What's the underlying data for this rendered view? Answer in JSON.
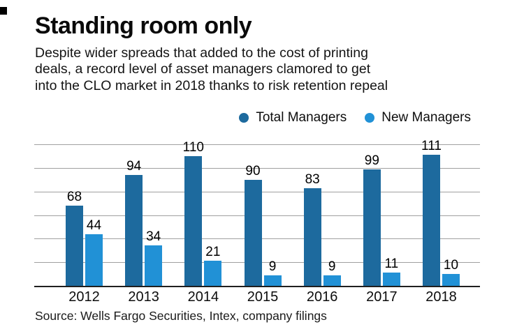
{
  "header": {
    "title": "Standing room only",
    "subtitle_lines": [
      "Despite wider spreads that added to the cost of printing",
      "deals, a record level of asset managers clamored to get",
      "into the CLO market in 2018 thanks to risk retention repeal"
    ]
  },
  "legend": [
    {
      "label": "Total Managers",
      "color": "#1d6a9e"
    },
    {
      "label": "New Managers",
      "color": "#2191d6"
    }
  ],
  "chart_data": {
    "type": "bar",
    "title": "Standing room only",
    "categories": [
      "2012",
      "2013",
      "2014",
      "2015",
      "2016",
      "2017",
      "2018"
    ],
    "series": [
      {
        "name": "Total Managers",
        "color": "#1d6a9e",
        "values": [
          68,
          94,
          110,
          90,
          83,
          99,
          111
        ]
      },
      {
        "name": "New Managers",
        "color": "#2191d6",
        "values": [
          44,
          34,
          21,
          9,
          9,
          11,
          10
        ]
      }
    ],
    "xlabel": "",
    "ylabel": "",
    "ylim": [
      0,
      120
    ],
    "gridline_step": 20,
    "grid": true,
    "y_tick_labels_shown": false,
    "value_labels": true,
    "legend_position": "top-right"
  },
  "footer": {
    "source": "Source: Wells Fargo Securities, Intex, company filings"
  },
  "colors": {
    "total_managers": "#1d6a9e",
    "new_managers": "#2191d6",
    "gridline": "#a0a0a0",
    "axis": "#1f1f1f",
    "text": "#0d0d0d"
  }
}
